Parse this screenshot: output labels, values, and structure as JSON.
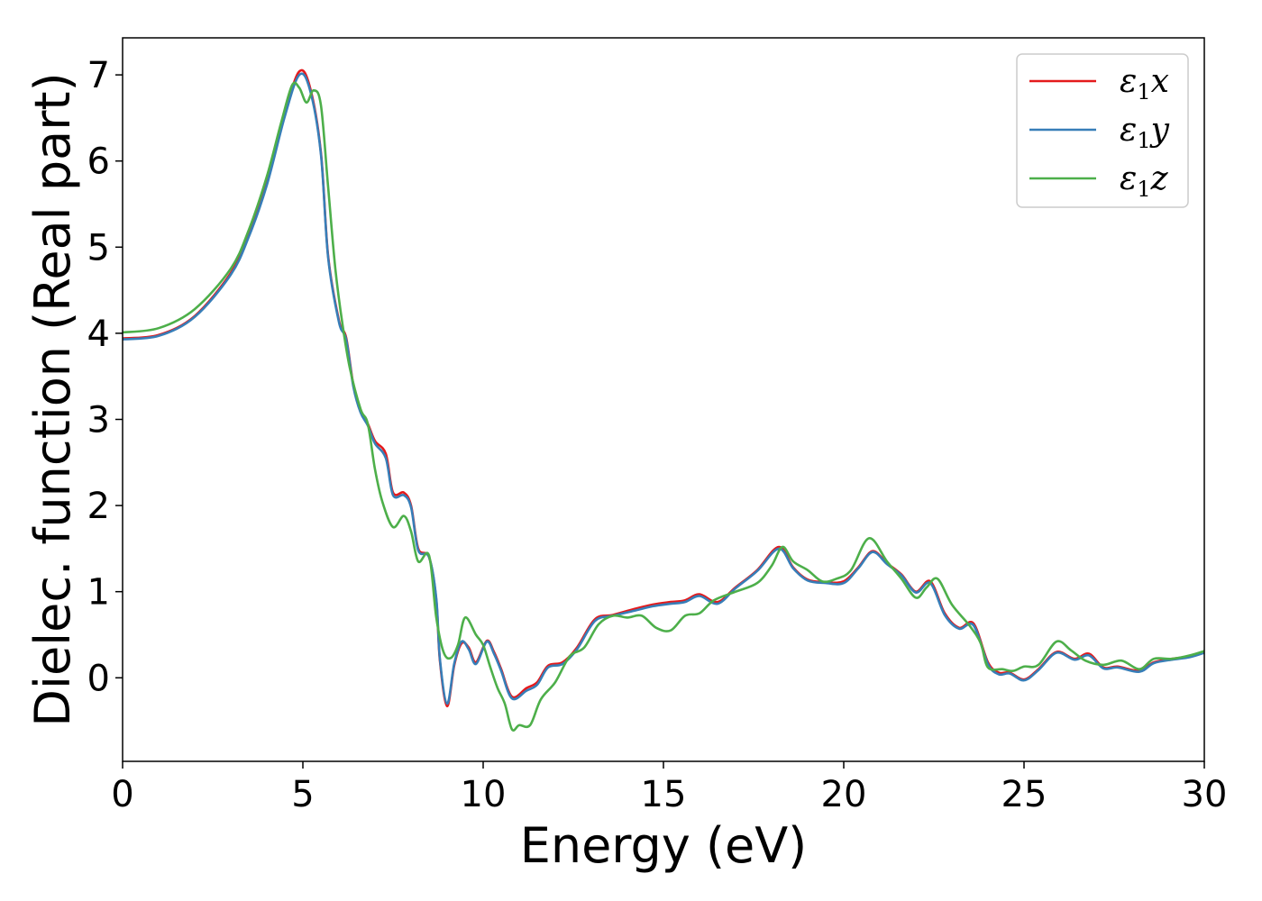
{
  "chart_data": {
    "type": "line",
    "xlabel": "Energy (eV)",
    "ylabel": "Dielec. function (Real part)",
    "xlim": [
      0,
      30
    ],
    "ylim": [
      -0.97,
      7.43
    ],
    "xticks": [
      0,
      5,
      10,
      15,
      20,
      25,
      30
    ],
    "yticks": [
      0,
      1,
      2,
      3,
      4,
      5,
      6,
      7
    ],
    "grid": false,
    "legend_position": "top-right",
    "series": [
      {
        "name": "ε1x",
        "legend": {
          "main": "ε",
          "sub": "1",
          "suffix": "x"
        },
        "color": "#e41a1c",
        "points": [
          [
            0,
            3.94
          ],
          [
            1,
            3.98
          ],
          [
            2,
            4.2
          ],
          [
            3,
            4.7
          ],
          [
            3.5,
            5.15
          ],
          [
            4,
            5.75
          ],
          [
            4.5,
            6.55
          ],
          [
            4.9,
            7.04
          ],
          [
            5.2,
            6.85
          ],
          [
            5.5,
            6.1
          ],
          [
            5.7,
            4.9
          ],
          [
            6,
            4.15
          ],
          [
            6.2,
            3.95
          ],
          [
            6.4,
            3.4
          ],
          [
            6.6,
            3.1
          ],
          [
            6.8,
            2.95
          ],
          [
            7,
            2.75
          ],
          [
            7.3,
            2.6
          ],
          [
            7.5,
            2.15
          ],
          [
            7.8,
            2.15
          ],
          [
            8,
            2.0
          ],
          [
            8.2,
            1.5
          ],
          [
            8.5,
            1.4
          ],
          [
            8.7,
            0.9
          ],
          [
            8.8,
            0.2
          ],
          [
            9.0,
            -0.33
          ],
          [
            9.2,
            0.15
          ],
          [
            9.4,
            0.4
          ],
          [
            9.6,
            0.35
          ],
          [
            9.8,
            0.18
          ],
          [
            10.1,
            0.43
          ],
          [
            10.3,
            0.3
          ],
          [
            10.5,
            0.1
          ],
          [
            10.8,
            -0.22
          ],
          [
            11.2,
            -0.12
          ],
          [
            11.5,
            -0.05
          ],
          [
            11.8,
            0.14
          ],
          [
            12.2,
            0.18
          ],
          [
            12.6,
            0.35
          ],
          [
            13.1,
            0.68
          ],
          [
            13.6,
            0.73
          ],
          [
            14.2,
            0.8
          ],
          [
            14.7,
            0.85
          ],
          [
            15.2,
            0.88
          ],
          [
            15.6,
            0.9
          ],
          [
            16.0,
            0.97
          ],
          [
            16.5,
            0.88
          ],
          [
            17.0,
            1.05
          ],
          [
            17.6,
            1.25
          ],
          [
            18.2,
            1.52
          ],
          [
            18.6,
            1.28
          ],
          [
            19.0,
            1.14
          ],
          [
            19.5,
            1.11
          ],
          [
            20.0,
            1.12
          ],
          [
            20.4,
            1.28
          ],
          [
            20.8,
            1.47
          ],
          [
            21.2,
            1.33
          ],
          [
            21.6,
            1.2
          ],
          [
            22.0,
            1.0
          ],
          [
            22.4,
            1.12
          ],
          [
            22.8,
            0.75
          ],
          [
            23.2,
            0.58
          ],
          [
            23.6,
            0.63
          ],
          [
            24.0,
            0.18
          ],
          [
            24.3,
            0.06
          ],
          [
            24.6,
            0.06
          ],
          [
            25.0,
            -0.02
          ],
          [
            25.4,
            0.1
          ],
          [
            25.9,
            0.3
          ],
          [
            26.4,
            0.22
          ],
          [
            26.8,
            0.28
          ],
          [
            27.2,
            0.12
          ],
          [
            27.6,
            0.13
          ],
          [
            28.2,
            0.08
          ],
          [
            28.6,
            0.18
          ],
          [
            29.1,
            0.22
          ],
          [
            29.6,
            0.25
          ],
          [
            30,
            0.3
          ]
        ]
      },
      {
        "name": "ε1y",
        "legend": {
          "main": "ε",
          "sub": "1",
          "suffix": "y"
        },
        "color": "#377eb8",
        "points": [
          [
            0,
            3.93
          ],
          [
            1,
            3.97
          ],
          [
            2,
            4.19
          ],
          [
            3,
            4.68
          ],
          [
            3.5,
            5.12
          ],
          [
            4,
            5.72
          ],
          [
            4.5,
            6.52
          ],
          [
            4.9,
            7.0
          ],
          [
            5.2,
            6.82
          ],
          [
            5.5,
            6.08
          ],
          [
            5.7,
            4.88
          ],
          [
            6,
            4.13
          ],
          [
            6.2,
            3.93
          ],
          [
            6.4,
            3.38
          ],
          [
            6.6,
            3.08
          ],
          [
            6.8,
            2.93
          ],
          [
            7,
            2.72
          ],
          [
            7.3,
            2.55
          ],
          [
            7.5,
            2.12
          ],
          [
            7.8,
            2.12
          ],
          [
            8,
            1.98
          ],
          [
            8.2,
            1.48
          ],
          [
            8.5,
            1.4
          ],
          [
            8.7,
            0.92
          ],
          [
            8.8,
            0.22
          ],
          [
            9.0,
            -0.3
          ],
          [
            9.2,
            0.17
          ],
          [
            9.4,
            0.42
          ],
          [
            9.6,
            0.33
          ],
          [
            9.8,
            0.16
          ],
          [
            10.1,
            0.42
          ],
          [
            10.3,
            0.28
          ],
          [
            10.5,
            0.08
          ],
          [
            10.8,
            -0.24
          ],
          [
            11.2,
            -0.15
          ],
          [
            11.5,
            -0.08
          ],
          [
            11.8,
            0.12
          ],
          [
            12.2,
            0.16
          ],
          [
            12.6,
            0.33
          ],
          [
            13.1,
            0.66
          ],
          [
            13.6,
            0.72
          ],
          [
            14.2,
            0.78
          ],
          [
            14.7,
            0.83
          ],
          [
            15.2,
            0.86
          ],
          [
            15.6,
            0.88
          ],
          [
            16.0,
            0.95
          ],
          [
            16.5,
            0.86
          ],
          [
            17.0,
            1.04
          ],
          [
            17.6,
            1.24
          ],
          [
            18.2,
            1.5
          ],
          [
            18.6,
            1.27
          ],
          [
            19.0,
            1.13
          ],
          [
            19.5,
            1.1
          ],
          [
            20.0,
            1.1
          ],
          [
            20.4,
            1.27
          ],
          [
            20.8,
            1.46
          ],
          [
            21.2,
            1.32
          ],
          [
            21.6,
            1.19
          ],
          [
            22.0,
            0.99
          ],
          [
            22.4,
            1.1
          ],
          [
            22.8,
            0.73
          ],
          [
            23.2,
            0.57
          ],
          [
            23.6,
            0.61
          ],
          [
            24.0,
            0.16
          ],
          [
            24.3,
            0.04
          ],
          [
            24.6,
            0.05
          ],
          [
            25.0,
            -0.03
          ],
          [
            25.4,
            0.09
          ],
          [
            25.9,
            0.29
          ],
          [
            26.4,
            0.21
          ],
          [
            26.8,
            0.26
          ],
          [
            27.2,
            0.11
          ],
          [
            27.6,
            0.12
          ],
          [
            28.2,
            0.07
          ],
          [
            28.6,
            0.17
          ],
          [
            29.1,
            0.21
          ],
          [
            29.6,
            0.24
          ],
          [
            30,
            0.29
          ]
        ]
      },
      {
        "name": "ε1z",
        "legend": {
          "main": "ε",
          "sub": "1",
          "suffix": "z"
        },
        "color": "#4daf4a",
        "points": [
          [
            0,
            4.01
          ],
          [
            1,
            4.06
          ],
          [
            2,
            4.28
          ],
          [
            3,
            4.75
          ],
          [
            3.5,
            5.2
          ],
          [
            4,
            5.82
          ],
          [
            4.4,
            6.45
          ],
          [
            4.7,
            6.88
          ],
          [
            4.9,
            6.85
          ],
          [
            5.1,
            6.68
          ],
          [
            5.3,
            6.82
          ],
          [
            5.5,
            6.65
          ],
          [
            5.7,
            5.7
          ],
          [
            5.9,
            4.75
          ],
          [
            6.1,
            4.1
          ],
          [
            6.3,
            3.6
          ],
          [
            6.6,
            3.12
          ],
          [
            6.8,
            2.95
          ],
          [
            7.0,
            2.42
          ],
          [
            7.2,
            2.05
          ],
          [
            7.5,
            1.75
          ],
          [
            7.8,
            1.88
          ],
          [
            8.0,
            1.7
          ],
          [
            8.2,
            1.35
          ],
          [
            8.5,
            1.42
          ],
          [
            8.7,
            0.7
          ],
          [
            8.9,
            0.3
          ],
          [
            9.1,
            0.23
          ],
          [
            9.3,
            0.38
          ],
          [
            9.5,
            0.7
          ],
          [
            9.8,
            0.5
          ],
          [
            10.0,
            0.38
          ],
          [
            10.2,
            0.12
          ],
          [
            10.4,
            -0.12
          ],
          [
            10.6,
            -0.3
          ],
          [
            10.8,
            -0.6
          ],
          [
            11.0,
            -0.55
          ],
          [
            11.3,
            -0.55
          ],
          [
            11.6,
            -0.25
          ],
          [
            12.0,
            -0.05
          ],
          [
            12.4,
            0.25
          ],
          [
            12.8,
            0.35
          ],
          [
            13.2,
            0.62
          ],
          [
            13.6,
            0.72
          ],
          [
            14.0,
            0.7
          ],
          [
            14.4,
            0.72
          ],
          [
            14.8,
            0.58
          ],
          [
            15.2,
            0.55
          ],
          [
            15.6,
            0.72
          ],
          [
            16.0,
            0.75
          ],
          [
            16.4,
            0.9
          ],
          [
            17.0,
            1.0
          ],
          [
            17.6,
            1.1
          ],
          [
            18.0,
            1.3
          ],
          [
            18.3,
            1.52
          ],
          [
            18.6,
            1.35
          ],
          [
            19.0,
            1.25
          ],
          [
            19.4,
            1.12
          ],
          [
            19.8,
            1.15
          ],
          [
            20.2,
            1.25
          ],
          [
            20.7,
            1.62
          ],
          [
            21.2,
            1.35
          ],
          [
            21.6,
            1.15
          ],
          [
            22.0,
            0.93
          ],
          [
            22.3,
            1.05
          ],
          [
            22.6,
            1.15
          ],
          [
            23.0,
            0.85
          ],
          [
            23.5,
            0.6
          ],
          [
            23.8,
            0.4
          ],
          [
            24.0,
            0.12
          ],
          [
            24.4,
            0.1
          ],
          [
            24.7,
            0.08
          ],
          [
            25.0,
            0.13
          ],
          [
            25.4,
            0.15
          ],
          [
            25.9,
            0.42
          ],
          [
            26.3,
            0.32
          ],
          [
            26.7,
            0.2
          ],
          [
            27.2,
            0.15
          ],
          [
            27.7,
            0.2
          ],
          [
            28.2,
            0.1
          ],
          [
            28.6,
            0.22
          ],
          [
            29.1,
            0.22
          ],
          [
            29.6,
            0.26
          ],
          [
            30,
            0.31
          ]
        ]
      }
    ]
  }
}
